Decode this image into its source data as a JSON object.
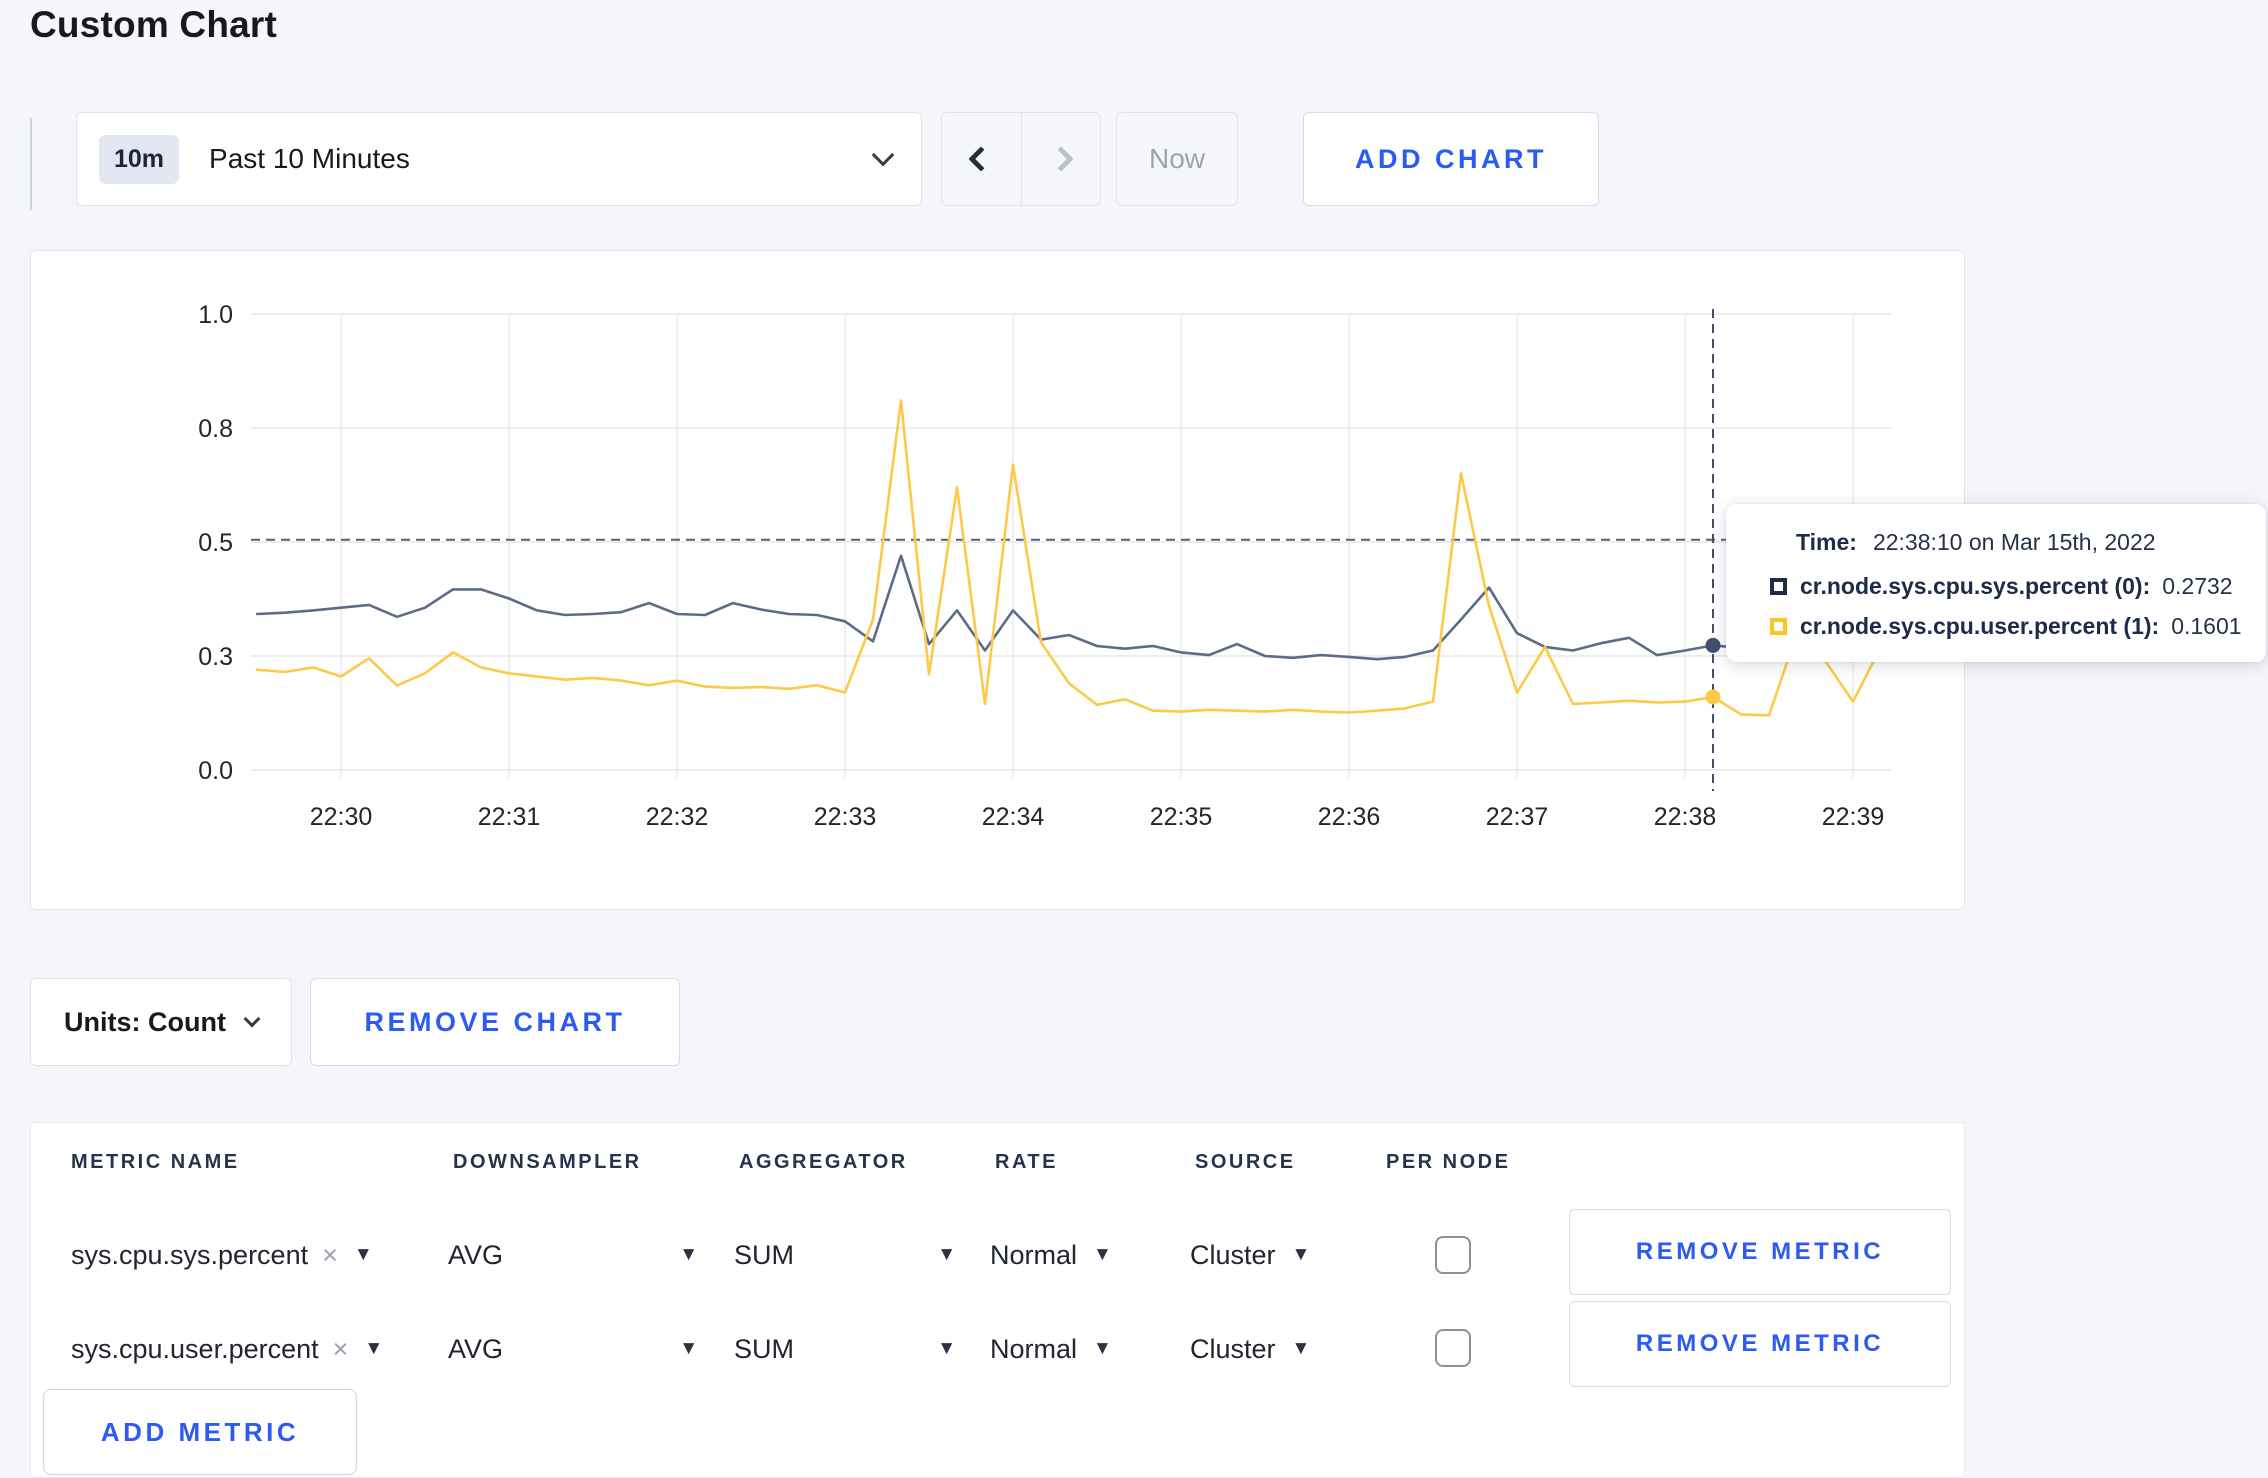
{
  "page": {
    "title": "Custom Chart"
  },
  "toolbar": {
    "time_range": {
      "badge": "10m",
      "label": "Past 10 Minutes"
    },
    "now_label": "Now",
    "add_chart_label": "ADD CHART"
  },
  "tooltip": {
    "time_label": "Time:",
    "time_value": "22:38:10 on Mar 15th, 2022",
    "series": [
      {
        "name": "cr.node.sys.cpu.sys.percent (0):",
        "value": "0.2732",
        "swatch_color": "#1c2b4a"
      },
      {
        "name": "cr.node.sys.cpu.user.percent (1):",
        "value": "0.1601",
        "swatch_color": "#ffc423"
      }
    ]
  },
  "chart_controls": {
    "units_label": "Units: Count",
    "remove_chart_label": "REMOVE CHART"
  },
  "metrics_table": {
    "columns": [
      "METRIC NAME",
      "DOWNSAMPLER",
      "AGGREGATOR",
      "RATE",
      "SOURCE",
      "PER NODE"
    ],
    "rows": [
      {
        "metric_name": "sys.cpu.sys.percent",
        "downsampler": "AVG",
        "aggregator": "SUM",
        "rate": "Normal",
        "source": "Cluster",
        "per_node_checked": false,
        "remove_label": "REMOVE METRIC"
      },
      {
        "metric_name": "sys.cpu.user.percent",
        "downsampler": "AVG",
        "aggregator": "SUM",
        "rate": "Normal",
        "source": "Cluster",
        "per_node_checked": false,
        "remove_label": "REMOVE METRIC"
      }
    ],
    "add_metric_label": "ADD METRIC"
  },
  "chart_data": {
    "type": "line",
    "grid": true,
    "ylim": [
      0,
      1
    ],
    "y_ticks": [
      {
        "label": "0.0",
        "value": 0
      },
      {
        "label": "0.3",
        "value": 0.25
      },
      {
        "label": "0.5",
        "value": 0.5
      },
      {
        "label": "0.8",
        "value": 0.75
      },
      {
        "label": "1.0",
        "value": 1.0
      }
    ],
    "x_ticks": [
      "22:30",
      "22:31",
      "22:32",
      "22:33",
      "22:34",
      "22:35",
      "22:36",
      "22:37",
      "22:38",
      "22:39"
    ],
    "crosshair": {
      "time": "22:38:10",
      "value": 0.505
    },
    "hover_points": [
      {
        "series": "cr.node.sys.cpu.sys.percent (0)",
        "value": 0.2732,
        "color": "#3f4f6d"
      },
      {
        "series": "cr.node.sys.cpu.user.percent (1)",
        "value": 0.1601,
        "color": "#fdca47"
      }
    ],
    "series": [
      {
        "name": "cr.node.sys.cpu.sys.percent (0)",
        "color": "#5c6c88",
        "start": "22:29:30",
        "interval_s": 10,
        "values": [
          0.342,
          0.345,
          0.35,
          0.356,
          0.362,
          0.336,
          0.356,
          0.396,
          0.396,
          0.376,
          0.35,
          0.34,
          0.342,
          0.346,
          0.366,
          0.342,
          0.34,
          0.366,
          0.352,
          0.342,
          0.34,
          0.326,
          0.282,
          0.47,
          0.276,
          0.35,
          0.262,
          0.35,
          0.286,
          0.296,
          0.272,
          0.266,
          0.272,
          0.258,
          0.252,
          0.276,
          0.25,
          0.246,
          0.252,
          0.248,
          0.243,
          0.248,
          0.262,
          0.33,
          0.4,
          0.3,
          0.27,
          0.262,
          0.278,
          0.29,
          0.252,
          0.262,
          0.2732,
          0.268,
          0.275,
          0.282,
          0.288,
          0.293,
          0.298
        ]
      },
      {
        "name": "cr.node.sys.cpu.user.percent (1)",
        "color": "#fdca47",
        "start": "22:29:30",
        "interval_s": 10,
        "values": [
          0.22,
          0.215,
          0.225,
          0.205,
          0.245,
          0.185,
          0.212,
          0.258,
          0.225,
          0.212,
          0.205,
          0.198,
          0.202,
          0.196,
          0.186,
          0.196,
          0.183,
          0.18,
          0.182,
          0.178,
          0.186,
          0.17,
          0.33,
          0.81,
          0.21,
          0.62,
          0.145,
          0.67,
          0.28,
          0.19,
          0.143,
          0.155,
          0.13,
          0.128,
          0.132,
          0.13,
          0.128,
          0.132,
          0.128,
          0.126,
          0.13,
          0.135,
          0.15,
          0.65,
          0.36,
          0.17,
          0.27,
          0.145,
          0.148,
          0.152,
          0.148,
          0.15,
          0.1601,
          0.122,
          0.12,
          0.3,
          0.24,
          0.15,
          0.27
        ]
      }
    ]
  }
}
